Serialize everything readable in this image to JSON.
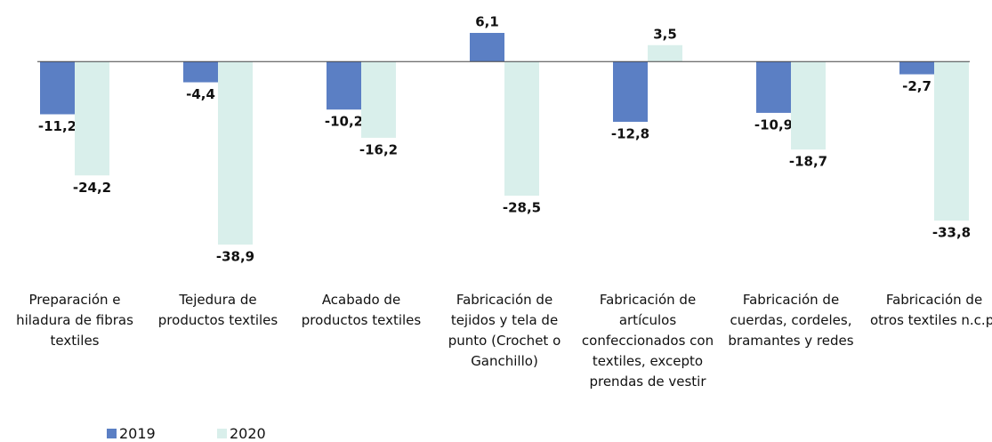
{
  "chart_data": {
    "type": "bar",
    "categories": [
      "Preparación e hiladura de fibras textiles",
      "Tejedura de productos textiles",
      "Acabado de productos textiles",
      "Fabricación de tejidos y tela de punto (Crochet o Ganchillo)",
      "Fabricación de artículos confeccionados con textiles, excepto prendas de vestir",
      "Fabricación de cuerdas, cordeles, bramantes y redes",
      "Fabricación de otros textiles n.c.p."
    ],
    "series": [
      {
        "name": "2019",
        "color": "#5b7fc4",
        "values": [
          -11.2,
          -4.4,
          -10.2,
          6.1,
          -12.8,
          -10.9,
          -2.7
        ],
        "value_labels": [
          "-11,2",
          "-4,4",
          "-10,2",
          "6,1",
          "-12,8",
          "-10,9",
          "-2,7"
        ]
      },
      {
        "name": "2020",
        "color": "#d9efeb",
        "values": [
          -24.2,
          -38.9,
          -16.2,
          -28.5,
          3.5,
          -18.7,
          -33.8
        ],
        "value_labels": [
          "-24,2",
          "-38,9",
          "-16,2",
          "-28,5",
          "3,5",
          "-18,7",
          "-33,8"
        ]
      }
    ]
  }
}
